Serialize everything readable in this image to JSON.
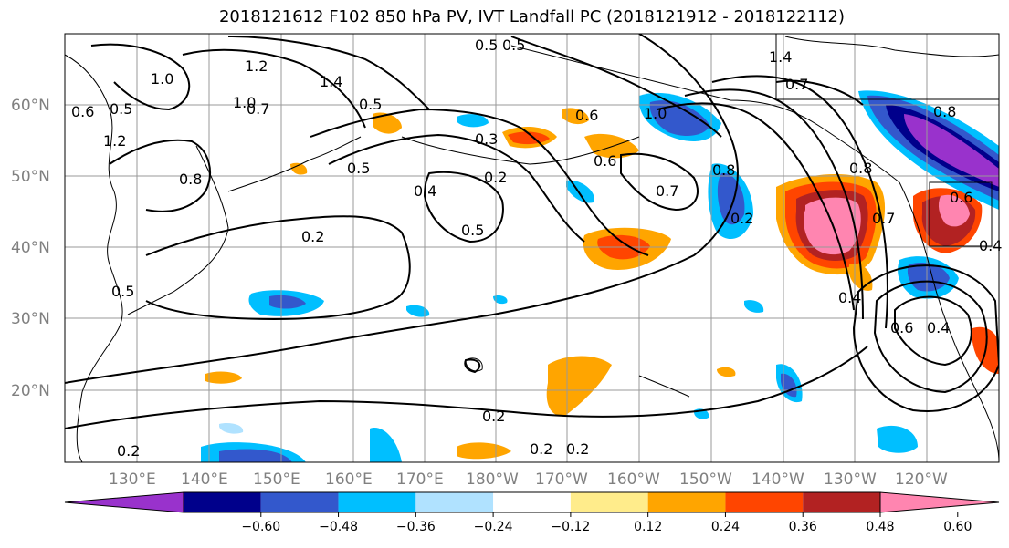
{
  "title": "2018121612 F102 850 hPa PV, IVT Landfall PC (2018121912 - 2018122112)",
  "lat_labels": [
    "60°N",
    "50°N",
    "40°N",
    "30°N",
    "20°N"
  ],
  "lon_labels": [
    "130°E",
    "140°E",
    "150°E",
    "160°E",
    "170°E",
    "180°W",
    "170°W",
    "160°W",
    "150°W",
    "140°W",
    "130°W",
    "120°W"
  ],
  "colorbar": {
    "ticks": [
      "−0.60",
      "−0.48",
      "−0.36",
      "−0.24",
      "−0.12",
      "0.12",
      "0.24",
      "0.36",
      "0.48",
      "0.60"
    ],
    "colors": [
      "#9932CC",
      "#00008B",
      "#3358CC",
      "#00BFFF",
      "#B0E2FF",
      "#FFFFFF",
      "#FFEC8B",
      "#FFA500",
      "#FF4500",
      "#B22222",
      "#FF85B0"
    ]
  },
  "contour_labels": [
    "0.5",
    "1.4",
    "1.0",
    "1.2",
    "1.4",
    "0.6",
    "0.5",
    "1.0",
    "0.7",
    "0.5",
    "0.8",
    "1.2",
    "0.8",
    "0.6",
    "0.7",
    "0.5",
    "0.3",
    "0.2",
    "0.4",
    "0.5",
    "0.6",
    "0.7",
    "1.0",
    "0.8",
    "0.2",
    "0.2",
    "0.5",
    "0.8",
    "0.7",
    "0.4",
    "0.6",
    "0.4",
    "0.4",
    "0.6",
    "0.2",
    "0.2",
    "0.2",
    "0.5",
    "0.2"
  ],
  "colors": {
    "contour": "#000000",
    "grid": "#999999",
    "coast": "#000000"
  }
}
